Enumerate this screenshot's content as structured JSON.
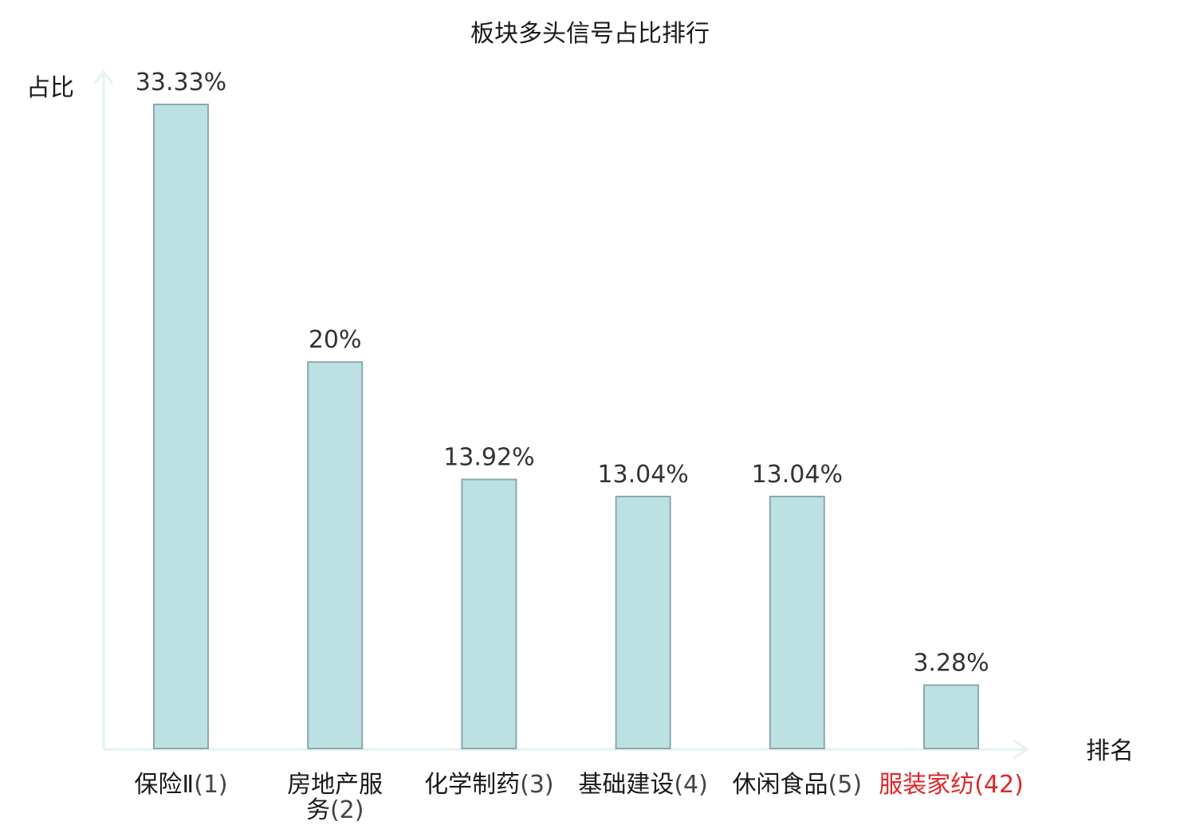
{
  "chart_data": {
    "type": "bar",
    "title": "板块多头信号占比排行",
    "ylabel": "占比",
    "xlabel": "排名",
    "ylim": [
      0,
      33.33
    ],
    "grid": false,
    "categories": [
      {
        "name": "保险Ⅱ",
        "rank": "(1)",
        "highlight": false
      },
      {
        "name": "房地产服务",
        "rank": "(2)",
        "highlight": false
      },
      {
        "name": "化学制药",
        "rank": "(3)",
        "highlight": false
      },
      {
        "name": "基础建设",
        "rank": "(4)",
        "highlight": false
      },
      {
        "name": "休闲食品",
        "rank": "(5)",
        "highlight": false
      },
      {
        "name": "服装家纺",
        "rank": "(42)",
        "highlight": true
      }
    ],
    "values": [
      33.33,
      20,
      13.92,
      13.04,
      13.04,
      3.28
    ],
    "value_labels": [
      "33.33%",
      "20%",
      "13.92%",
      "13.04%",
      "13.04%",
      "3.28%"
    ]
  },
  "colors": {
    "bar_fill": "#bde1e3",
    "bar_stroke": "#8aa9ab",
    "axis": "#e3f3f1",
    "label_text": "#1a1a1a",
    "rank_text": "#444444",
    "highlight": "#e0262a",
    "value_text": "#333333"
  }
}
